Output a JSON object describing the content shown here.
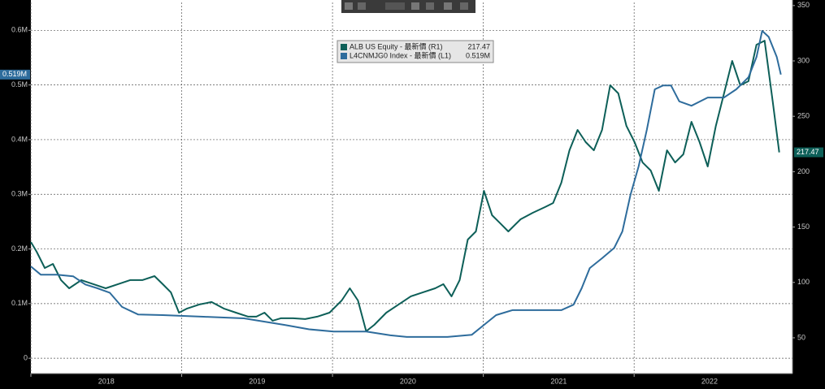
{
  "chart_data": {
    "type": "line",
    "xlim": [
      2018.0,
      2023.05
    ],
    "xticks": [
      {
        "value": 2018,
        "label": "2018"
      },
      {
        "value": 2019,
        "label": "2019"
      },
      {
        "value": 2020,
        "label": "2020"
      },
      {
        "value": 2021,
        "label": "2021"
      },
      {
        "value": 2022,
        "label": "2022"
      }
    ],
    "ylim": [
      -0.028,
      0.651
    ],
    "yticks": [
      0,
      {
        "value": 0.1,
        "label": "0.1M"
      },
      {
        "value": 0.2,
        "label": "0.2M"
      },
      {
        "value": 0.3,
        "label": "0.3M"
      },
      {
        "value": 0.4,
        "label": "0.4M"
      },
      {
        "value": 0.5,
        "label": "0.5M"
      },
      {
        "value": 0.6,
        "label": "0.6M"
      }
    ],
    "y2lim": [
      17.7,
      352.8
    ],
    "y2ticks": [
      50,
      100,
      150,
      200,
      250,
      300,
      350
    ],
    "grid": true,
    "series": [
      {
        "name": "ALB US Equity - 最新價 (R1)",
        "color": "#0d5f58",
        "axis": "y2",
        "x": [
          2018.0,
          2018.038,
          2018.092,
          2018.146,
          2018.2,
          2018.254,
          2018.334,
          2018.415,
          2018.496,
          2018.577,
          2018.658,
          2018.739,
          2018.82,
          2018.874,
          2018.928,
          2018.982,
          2019.036,
          2019.117,
          2019.198,
          2019.279,
          2019.36,
          2019.441,
          2019.495,
          2019.549,
          2019.603,
          2019.657,
          2019.738,
          2019.819,
          2019.899,
          2019.98,
          2020.061,
          2020.115,
          2020.169,
          2020.223,
          2020.277,
          2020.357,
          2020.438,
          2020.519,
          2020.6,
          2020.681,
          2020.735,
          2020.789,
          2020.843,
          2020.897,
          2020.951,
          2021.004,
          2021.058,
          2021.112,
          2021.166,
          2021.247,
          2021.328,
          2021.409,
          2021.463,
          2021.517,
          2021.571,
          2021.625,
          2021.679,
          2021.733,
          2021.787,
          2021.841,
          2021.895,
          2021.949,
          2022.003,
          2022.056,
          2022.11,
          2022.164,
          2022.218,
          2022.272,
          2022.326,
          2022.38,
          2022.434,
          2022.488,
          2022.542,
          2022.596,
          2022.65,
          2022.704,
          2022.758,
          2022.811,
          2022.865,
          2022.919,
          2022.962
        ],
        "values": [
          136.5,
          127.7,
          113.0,
          116.7,
          102.1,
          94.7,
          102.1,
          98.4,
          94.7,
          98.4,
          102.1,
          102.1,
          105.7,
          98.4,
          91.1,
          72.7,
          76.4,
          80.1,
          82.3,
          76.4,
          72.7,
          69.1,
          69.1,
          72.7,
          65.4,
          67.6,
          67.6,
          66.9,
          69.1,
          72.7,
          83.7,
          94.7,
          83.7,
          55.9,
          61.7,
          72.7,
          80.1,
          87.4,
          91.1,
          94.7,
          98.4,
          87.4,
          102.1,
          138.7,
          146.0,
          182.7,
          160.7,
          153.4,
          146.0,
          157.0,
          162.9,
          168.0,
          171.7,
          190.0,
          219.3,
          237.7,
          226.7,
          219.3,
          237.7,
          278.0,
          270.7,
          241.3,
          226.7,
          208.3,
          201.0,
          182.7,
          219.3,
          208.3,
          215.7,
          245.0,
          226.7,
          204.7,
          241.3,
          270.7,
          300.0,
          278.0,
          281.7,
          314.6,
          318.3,
          263.3,
          217.47
        ],
        "value_labels": [
          null,
          null,
          null,
          null,
          null,
          null,
          null,
          null,
          null,
          null,
          null,
          null,
          null,
          null,
          null,
          null,
          null,
          null,
          null,
          null,
          null,
          null,
          null,
          null,
          null,
          null,
          null,
          null,
          null,
          null,
          null,
          null,
          null,
          null,
          null,
          null,
          null,
          null,
          null,
          null,
          null,
          null,
          null,
          null,
          null,
          null,
          null,
          null,
          null,
          null,
          null,
          null,
          null,
          null,
          null,
          null,
          null,
          null,
          null,
          null,
          null,
          null,
          null,
          null,
          null,
          null,
          null,
          null,
          null,
          null,
          null,
          null,
          null,
          null,
          null,
          null,
          null,
          null,
          null,
          null,
          "217.47"
        ]
      },
      {
        "name": "L4CNMJG0 Index - 最新價 (L1)",
        "color": "#2e6c9c",
        "x": [
          2018.0,
          2018.065,
          2018.173,
          2018.28,
          2018.361,
          2018.442,
          2018.523,
          2018.604,
          2018.712,
          2018.874,
          2019.144,
          2019.413,
          2019.683,
          2019.845,
          2020.007,
          2020.223,
          2020.384,
          2020.492,
          2020.762,
          2020.924,
          2021.004,
          2021.085,
          2021.193,
          2021.355,
          2021.517,
          2021.598,
          2021.652,
          2021.706,
          2021.787,
          2021.868,
          2021.922,
          2021.976,
          2022.03,
          2022.084,
          2022.137,
          2022.191,
          2022.245,
          2022.299,
          2022.38,
          2022.488,
          2022.596,
          2022.677,
          2022.758,
          2022.811,
          2022.849,
          2022.892,
          2022.946,
          2022.973
        ],
        "values": [
          0.168,
          0.153,
          0.153,
          0.15,
          0.135,
          0.128,
          0.12,
          0.094,
          0.08,
          0.079,
          0.076,
          0.073,
          0.061,
          0.053,
          0.049,
          0.049,
          0.042,
          0.039,
          0.039,
          0.043,
          0.061,
          0.079,
          0.088,
          0.088,
          0.088,
          0.098,
          0.128,
          0.165,
          0.183,
          0.202,
          0.232,
          0.299,
          0.351,
          0.418,
          0.492,
          0.499,
          0.499,
          0.47,
          0.462,
          0.477,
          0.477,
          0.492,
          0.514,
          0.551,
          0.599,
          0.588,
          0.551,
          0.519
        ],
        "value_labels": [
          null,
          null,
          null,
          null,
          null,
          null,
          null,
          null,
          null,
          null,
          null,
          null,
          null,
          null,
          null,
          null,
          null,
          null,
          null,
          null,
          null,
          null,
          null,
          null,
          null,
          null,
          null,
          null,
          null,
          null,
          null,
          null,
          null,
          null,
          null,
          null,
          null,
          null,
          null,
          null,
          null,
          null,
          null,
          null,
          null,
          null,
          null,
          "0.519M"
        ]
      }
    ]
  }
}
